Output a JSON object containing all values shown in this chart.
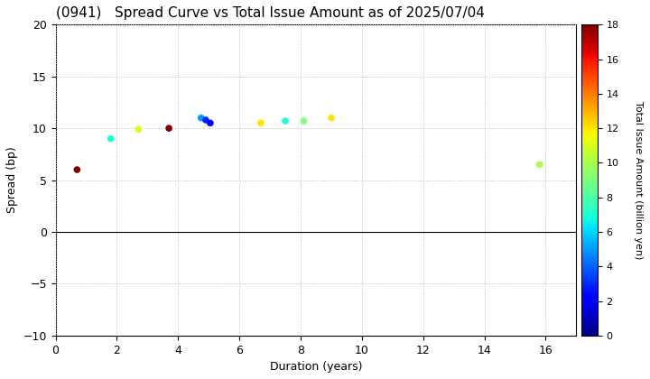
{
  "title": "(0941)   Spread Curve vs Total Issue Amount as of 2025/07/04",
  "xlabel": "Duration (years)",
  "ylabel": "Spread (bp)",
  "colorbar_label": "Total Issue Amount (billion yen)",
  "xlim": [
    0,
    17
  ],
  "ylim": [
    -10,
    20
  ],
  "xticks": [
    0,
    2,
    4,
    6,
    8,
    10,
    12,
    14,
    16
  ],
  "yticks": [
    -10.0,
    -5.0,
    0.0,
    5.0,
    10.0,
    15.0,
    20.0
  ],
  "colorbar_min": 0,
  "colorbar_max": 18,
  "colorbar_ticks": [
    0,
    2,
    4,
    6,
    8,
    10,
    12,
    14,
    16,
    18
  ],
  "points": [
    {
      "duration": 0.7,
      "spread": 6.0,
      "amount": 18
    },
    {
      "duration": 1.8,
      "spread": 9.0,
      "amount": 7
    },
    {
      "duration": 2.7,
      "spread": 9.9,
      "amount": 11
    },
    {
      "duration": 3.7,
      "spread": 10.0,
      "amount": 18
    },
    {
      "duration": 4.75,
      "spread": 11.0,
      "amount": 5
    },
    {
      "duration": 4.9,
      "spread": 10.8,
      "amount": 3
    },
    {
      "duration": 5.05,
      "spread": 10.5,
      "amount": 2
    },
    {
      "duration": 6.7,
      "spread": 10.5,
      "amount": 12
    },
    {
      "duration": 7.5,
      "spread": 10.7,
      "amount": 7
    },
    {
      "duration": 8.1,
      "spread": 10.7,
      "amount": 9
    },
    {
      "duration": 9.0,
      "spread": 11.0,
      "amount": 12
    },
    {
      "duration": 15.8,
      "spread": 6.5,
      "amount": 10
    }
  ],
  "background_color": "#ffffff",
  "grid_color": "#bbbbbb",
  "marker_size": 30,
  "title_fontsize": 11,
  "axis_fontsize": 9,
  "colorbar_fontsize": 8,
  "figsize": [
    7.2,
    4.2
  ],
  "dpi": 100
}
